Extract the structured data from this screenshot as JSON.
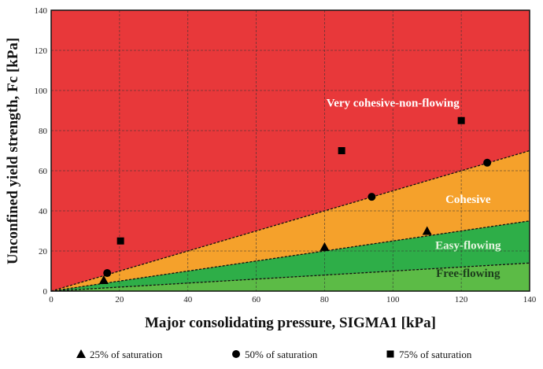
{
  "chart_data": {
    "type": "scatter",
    "xlabel": "Major consolidating pressure, SIGMA1 [kPa]",
    "ylabel": "Unconfined yield strength, Fc [kPa]",
    "xlim": [
      0,
      140
    ],
    "ylim": [
      0,
      140
    ],
    "xticks": [
      0,
      20,
      40,
      60,
      80,
      100,
      120,
      140
    ],
    "yticks": [
      0,
      20,
      40,
      60,
      80,
      100,
      120,
      140
    ],
    "grid": true,
    "legend_placement": "bottom",
    "regions": [
      {
        "label": "Very cohesive-non-flowing",
        "ffc_lower_line_slope": 0.5,
        "color": "#e8383a",
        "label_color": "#ffffff",
        "label_at": [
          100,
          92
        ]
      },
      {
        "label": "Cohesive",
        "upper_slope": 0.5,
        "lower_slope": 0.25,
        "color": "#f5a12b",
        "label_color": "#ffffff",
        "label_at": [
          122,
          44
        ]
      },
      {
        "label": "Easy-flowing",
        "upper_slope": 0.25,
        "lower_slope": 0.1,
        "color": "#2eae48",
        "label_color": "#e6f5e0",
        "label_at": [
          122,
          21
        ]
      },
      {
        "label": "Free-flowing",
        "upper_slope": 0.1,
        "lower_slope": 0,
        "color": "#5cbb46",
        "label_color": "#1c3d1c",
        "label_at": [
          122,
          7
        ]
      }
    ],
    "series": [
      {
        "name": "25% of saturation",
        "marker": "triangle",
        "points": [
          [
            15.4,
            5.5
          ],
          [
            80,
            22
          ],
          [
            110,
            30
          ]
        ]
      },
      {
        "name": "50% of saturation",
        "marker": "circle",
        "points": [
          [
            16.4,
            9
          ],
          [
            93.8,
            47
          ],
          [
            127.6,
            64
          ]
        ]
      },
      {
        "name": "75% of saturation",
        "marker": "square",
        "points": [
          [
            20.3,
            25
          ],
          [
            85,
            70
          ],
          [
            120,
            85
          ]
        ]
      }
    ]
  }
}
